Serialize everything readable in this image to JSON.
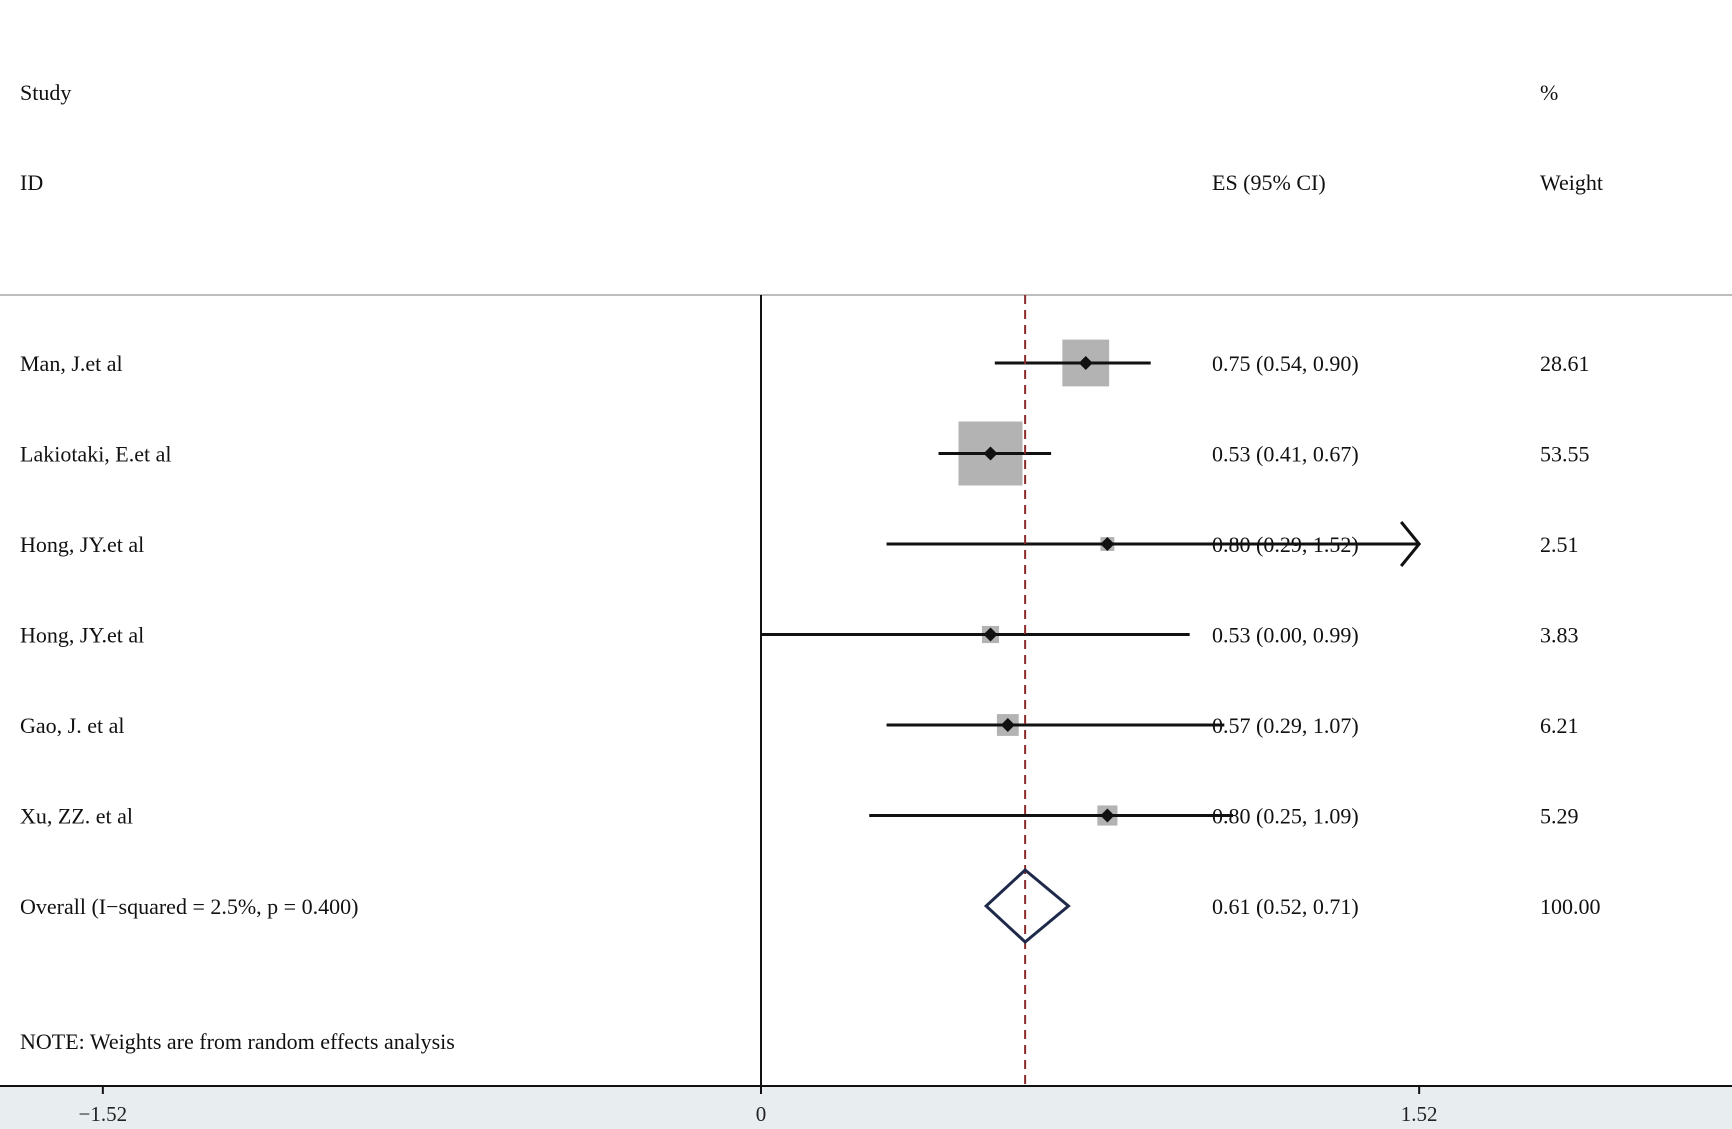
{
  "header": {
    "study_line1": "Study",
    "study_line2": "ID",
    "es_header": "ES (95% CI)",
    "weight_line1": "%",
    "weight_line2": "Weight"
  },
  "note": "NOTE: Weights are from random effects analysis",
  "chart_data": {
    "type": "forest",
    "x_ticks": [
      {
        "value": -1.52,
        "label": "−1.52"
      },
      {
        "value": 0,
        "label": "0"
      },
      {
        "value": 1.52,
        "label": "1.52"
      }
    ],
    "xlim": [
      -2.67,
      3.41
    ],
    "null_line": 0,
    "pooled_line": 0.61,
    "studies": [
      {
        "label": "Man, J.et al",
        "es": 0.75,
        "lo": 0.54,
        "hi": 0.9,
        "weight": 28.61,
        "es_text": "0.75 (0.54, 0.90)",
        "weight_text": "28.61"
      },
      {
        "label": "Lakiotaki, E.et al",
        "es": 0.53,
        "lo": 0.41,
        "hi": 0.67,
        "weight": 53.55,
        "es_text": "0.53 (0.41, 0.67)",
        "weight_text": "53.55"
      },
      {
        "label": "Hong, JY.et al",
        "es": 0.8,
        "lo": 0.29,
        "hi": 1.52,
        "weight": 2.51,
        "es_text": "0.80 (0.29, 1.52)",
        "weight_text": "2.51",
        "arrow_right": true
      },
      {
        "label": "Hong, JY.et al",
        "es": 0.53,
        "lo": 0.0,
        "hi": 0.99,
        "weight": 3.83,
        "es_text": "0.53 (0.00, 0.99)",
        "weight_text": "3.83"
      },
      {
        "label": "Gao, J. et al",
        "es": 0.57,
        "lo": 0.29,
        "hi": 1.07,
        "weight": 6.21,
        "es_text": "0.57 (0.29, 1.07)",
        "weight_text": "6.21"
      },
      {
        "label": "Xu, ZZ. et al",
        "es": 0.8,
        "lo": 0.25,
        "hi": 1.09,
        "weight": 5.29,
        "es_text": "0.80 (0.25, 1.09)",
        "weight_text": "5.29"
      }
    ],
    "overall": {
      "label": "Overall  (I−squared = 2.5%, p = 0.400)",
      "es": 0.61,
      "lo": 0.52,
      "hi": 0.71,
      "es_text": "0.61 (0.52, 0.71)",
      "weight_text": "100.00"
    },
    "colors": {
      "box": "#b3b3b3",
      "line": "#111111",
      "pooled_line": "#8b2a2a",
      "diamond": "#1f2a4a",
      "axis_band": "#e8eef0",
      "rule": "#bdbdbd"
    }
  }
}
